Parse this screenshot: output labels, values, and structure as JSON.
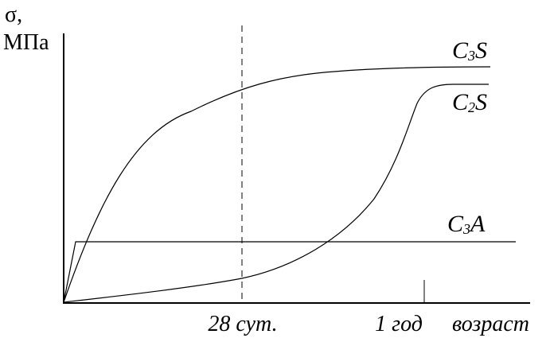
{
  "chart_data": {
    "type": "line",
    "ylabel_line1": "σ,",
    "ylabel_line2": "МПа",
    "xlabel": "возраст",
    "x_markers": [
      {
        "label": "28 сут.",
        "style": "dashed"
      },
      {
        "label": "1 год",
        "style": "tick"
      }
    ],
    "series": [
      {
        "name": "C₃S",
        "label_main": "C",
        "label_sub": "3",
        "label_end": "S",
        "shape": "rapid rise, then plateau near maximum"
      },
      {
        "name": "C₂S",
        "label_main": "C",
        "label_sub": "2",
        "label_end": "S",
        "shape": "slow rise, sharp increase before 1 year, plateau"
      },
      {
        "name": "C₃A",
        "label_main": "C",
        "label_sub": "3",
        "label_end": "A",
        "shape": "very fast rise, then constant low level"
      }
    ],
    "grid": false,
    "legend": "labels at line ends"
  }
}
